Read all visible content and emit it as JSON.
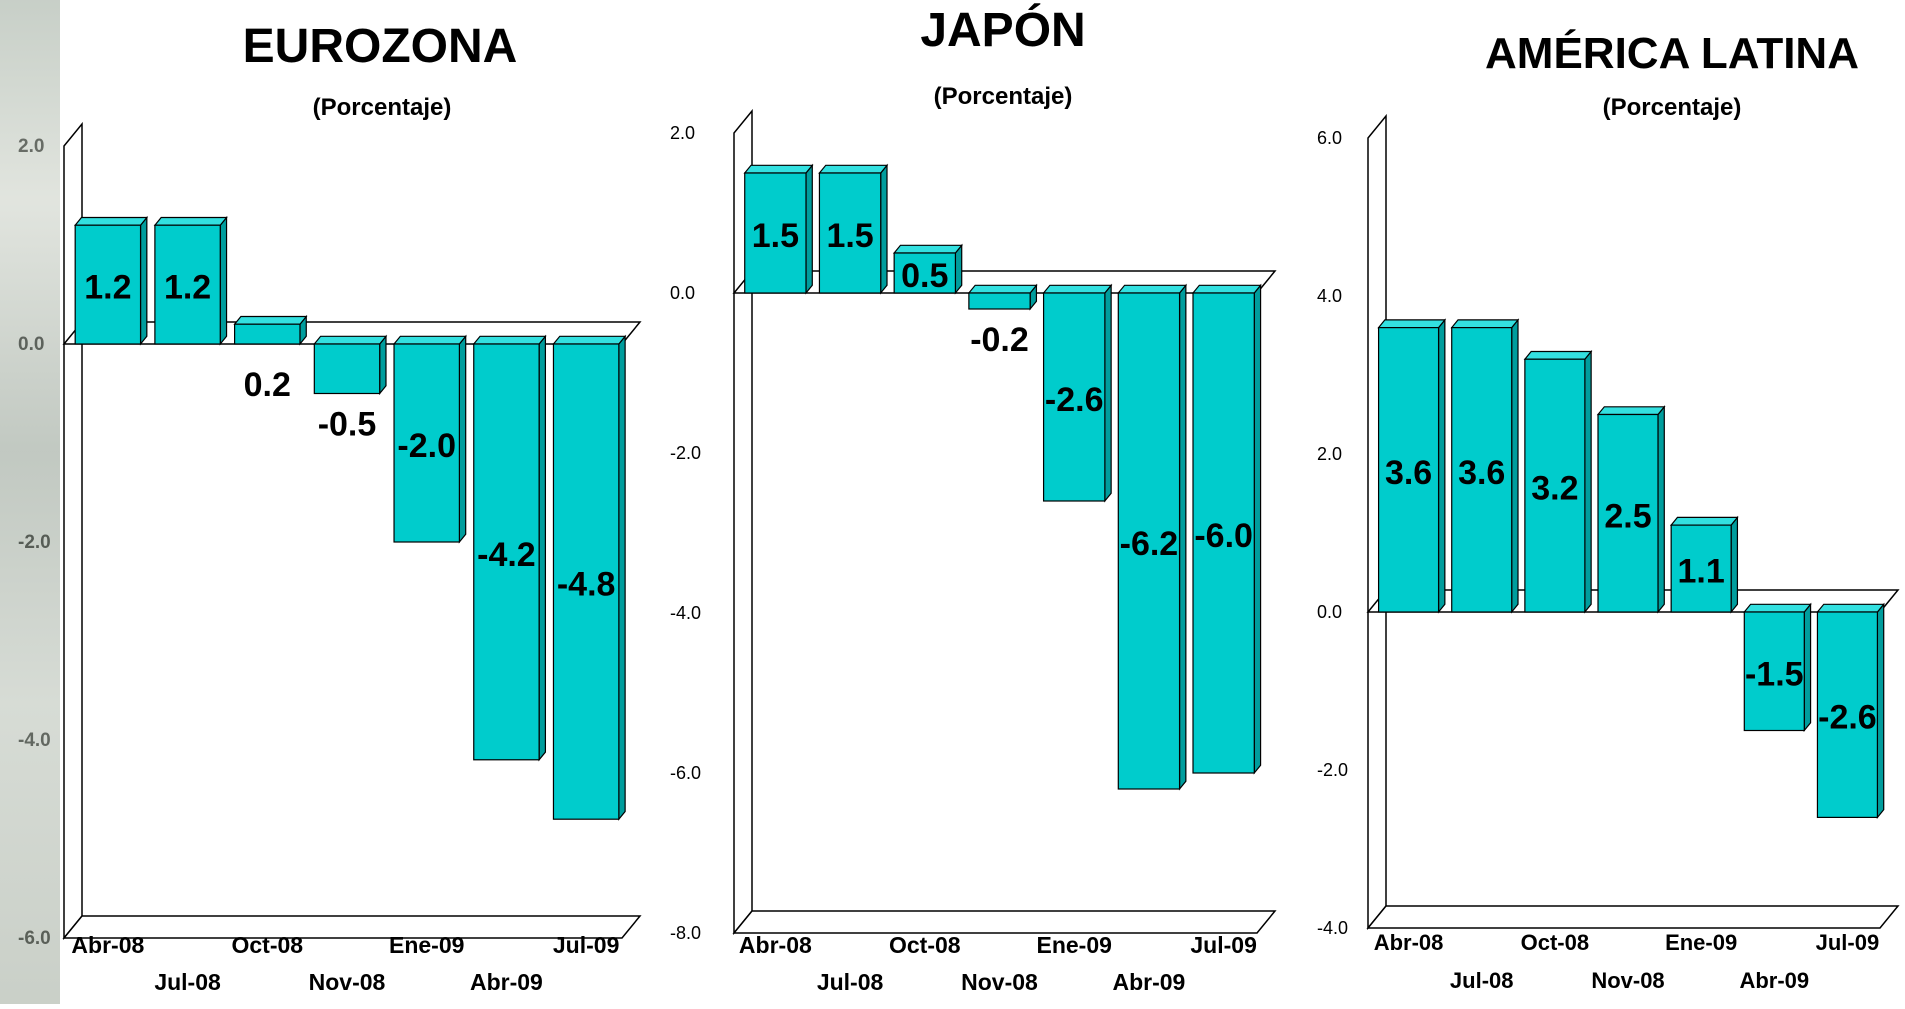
{
  "colors": {
    "bar_front": "#00cccc",
    "bar_top": "#33e0e0",
    "bar_side": "#009d9d",
    "outline": "#000000"
  },
  "chart_data": [
    {
      "type": "bar",
      "title": "EUROZONA",
      "subtitle": "(Porcentaje)",
      "categories": [
        "Abr-08",
        "Jul-08",
        "Oct-08",
        "Nov-08",
        "Ene-09",
        "Abr-09",
        "Jul-09"
      ],
      "values": [
        1.2,
        1.2,
        0.2,
        -0.5,
        -2.0,
        -4.2,
        -4.8
      ],
      "value_labels": [
        "1.2",
        "1.2",
        "0.2",
        "-0.5",
        "-2.0",
        "-4.2",
        "-4.8"
      ],
      "ylim": [
        -6.0,
        2.0
      ],
      "yticks": [
        "2.0",
        "0.0",
        "-2.0",
        "-4.0",
        "-6.0"
      ],
      "three_d": true
    },
    {
      "type": "bar",
      "title": "JAPÓN",
      "subtitle": "(Porcentaje)",
      "categories": [
        "Abr-08",
        "Jul-08",
        "Oct-08",
        "Nov-08",
        "Ene-09",
        "Abr-09",
        "Jul-09"
      ],
      "values": [
        1.5,
        1.5,
        0.5,
        -0.2,
        -2.6,
        -6.2,
        -6.0
      ],
      "value_labels": [
        "1.5",
        "1.5",
        "0.5",
        "-0.2",
        "-2.6",
        "-6.2",
        "-6.0"
      ],
      "ylim": [
        -8.0,
        2.0
      ],
      "yticks": [
        "2.0",
        "0.0",
        "-2.0",
        "-4.0",
        "-6.0",
        "-8.0"
      ],
      "three_d": true
    },
    {
      "type": "bar",
      "title": "AMÉRICA LATINA",
      "subtitle": "(Porcentaje)",
      "categories": [
        "Abr-08",
        "Jul-08",
        "Oct-08",
        "Nov-08",
        "Ene-09",
        "Abr-09",
        "Jul-09"
      ],
      "values": [
        3.6,
        3.6,
        3.2,
        2.5,
        1.1,
        -1.5,
        -2.6
      ],
      "value_labels": [
        "3.6",
        "3.6",
        "3.2",
        "2.5",
        "1.1",
        "-1.5",
        "-2.6"
      ],
      "ylim": [
        -4.0,
        6.0
      ],
      "yticks": [
        "6.0",
        "4.0",
        "2.0",
        "0.0",
        "-2.0",
        "-4.0"
      ],
      "three_d": true
    }
  ]
}
